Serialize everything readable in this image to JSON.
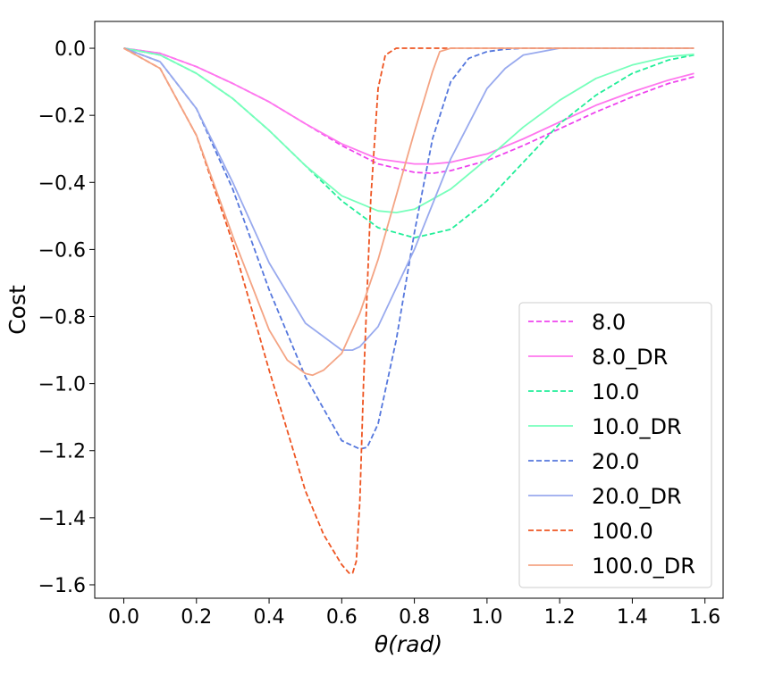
{
  "chart_data": {
    "type": "line",
    "title": "",
    "xlabel": "θ(rad)",
    "ylabel": "Cost",
    "xlim": [
      -0.08,
      1.65
    ],
    "ylim": [
      -1.64,
      0.08
    ],
    "xticks": [
      {
        "value": 0.0,
        "label": "0.0"
      },
      {
        "value": 0.2,
        "label": "0.2"
      },
      {
        "value": 0.4,
        "label": "0.4"
      },
      {
        "value": 0.6,
        "label": "0.6"
      },
      {
        "value": 0.8,
        "label": "0.8"
      },
      {
        "value": 1.0,
        "label": "1.0"
      },
      {
        "value": 1.2,
        "label": "1.2"
      },
      {
        "value": 1.4,
        "label": "1.4"
      },
      {
        "value": 1.6,
        "label": "1.6"
      }
    ],
    "yticks": [
      {
        "value": 0.0,
        "label": "0.0"
      },
      {
        "value": -0.2,
        "label": "−0.2"
      },
      {
        "value": -0.4,
        "label": "−0.4"
      },
      {
        "value": -0.6,
        "label": "−0.6"
      },
      {
        "value": -0.8,
        "label": "−0.8"
      },
      {
        "value": -1.0,
        "label": "−1.0"
      },
      {
        "value": -1.2,
        "label": "−1.2"
      },
      {
        "value": -1.4,
        "label": "−1.4"
      },
      {
        "value": -1.6,
        "label": "−1.6"
      }
    ],
    "grid": false,
    "legend_position": "bottom-right",
    "series": [
      {
        "name": "8.0",
        "style": "dashed",
        "color": "#ee44ee",
        "x": [
          0.0,
          0.1,
          0.2,
          0.3,
          0.4,
          0.5,
          0.6,
          0.7,
          0.8,
          0.85,
          0.9,
          1.0,
          1.1,
          1.2,
          1.3,
          1.4,
          1.5,
          1.57
        ],
        "y": [
          0.0,
          -0.015,
          -0.055,
          -0.105,
          -0.16,
          -0.225,
          -0.29,
          -0.345,
          -0.37,
          -0.373,
          -0.365,
          -0.335,
          -0.29,
          -0.24,
          -0.19,
          -0.145,
          -0.105,
          -0.085
        ]
      },
      {
        "name": "8.0_DR",
        "style": "solid",
        "color": "#ff77ee",
        "x": [
          0.0,
          0.1,
          0.2,
          0.3,
          0.4,
          0.5,
          0.6,
          0.7,
          0.8,
          0.85,
          0.9,
          1.0,
          1.1,
          1.2,
          1.3,
          1.4,
          1.5,
          1.57
        ],
        "y": [
          0.0,
          -0.015,
          -0.055,
          -0.105,
          -0.16,
          -0.225,
          -0.285,
          -0.33,
          -0.345,
          -0.345,
          -0.34,
          -0.315,
          -0.27,
          -0.22,
          -0.17,
          -0.13,
          -0.095,
          -0.075
        ]
      },
      {
        "name": "10.0",
        "style": "dashed",
        "color": "#22ee99",
        "x": [
          0.0,
          0.1,
          0.2,
          0.3,
          0.4,
          0.5,
          0.6,
          0.7,
          0.8,
          0.9,
          1.0,
          1.1,
          1.2,
          1.3,
          1.4,
          1.5,
          1.57
        ],
        "y": [
          0.0,
          -0.02,
          -0.075,
          -0.15,
          -0.245,
          -0.35,
          -0.455,
          -0.535,
          -0.565,
          -0.54,
          -0.455,
          -0.34,
          -0.225,
          -0.14,
          -0.075,
          -0.035,
          -0.02
        ]
      },
      {
        "name": "10.0_DR",
        "style": "solid",
        "color": "#77ffbb",
        "x": [
          0.0,
          0.1,
          0.2,
          0.3,
          0.4,
          0.5,
          0.6,
          0.7,
          0.75,
          0.8,
          0.9,
          1.0,
          1.1,
          1.2,
          1.3,
          1.4,
          1.5,
          1.57
        ],
        "y": [
          0.0,
          -0.02,
          -0.075,
          -0.15,
          -0.245,
          -0.35,
          -0.44,
          -0.485,
          -0.49,
          -0.48,
          -0.42,
          -0.33,
          -0.235,
          -0.155,
          -0.09,
          -0.05,
          -0.025,
          -0.018
        ]
      },
      {
        "name": "20.0",
        "style": "dashed",
        "color": "#5577dd",
        "x": [
          0.0,
          0.1,
          0.2,
          0.3,
          0.4,
          0.5,
          0.6,
          0.65,
          0.67,
          0.7,
          0.75,
          0.8,
          0.85,
          0.9,
          0.95,
          1.0,
          1.05,
          1.1,
          1.2,
          1.3,
          1.57
        ],
        "y": [
          0.0,
          -0.04,
          -0.18,
          -0.42,
          -0.72,
          -0.98,
          -1.17,
          -1.195,
          -1.19,
          -1.12,
          -0.87,
          -0.55,
          -0.27,
          -0.1,
          -0.03,
          -0.01,
          -0.003,
          0.0,
          0.0,
          0.0,
          0.0
        ]
      },
      {
        "name": "20.0_DR",
        "style": "solid",
        "color": "#99aaee",
        "x": [
          0.0,
          0.1,
          0.2,
          0.3,
          0.4,
          0.5,
          0.6,
          0.63,
          0.65,
          0.7,
          0.8,
          0.9,
          1.0,
          1.05,
          1.1,
          1.2,
          1.3,
          1.57
        ],
        "y": [
          0.0,
          -0.04,
          -0.18,
          -0.4,
          -0.64,
          -0.82,
          -0.9,
          -0.9,
          -0.89,
          -0.83,
          -0.6,
          -0.33,
          -0.12,
          -0.06,
          -0.02,
          0.0,
          0.0,
          0.0
        ]
      },
      {
        "name": "100.0",
        "style": "dashed",
        "color": "#ee5522",
        "x": [
          0.0,
          0.1,
          0.2,
          0.3,
          0.4,
          0.5,
          0.55,
          0.6,
          0.62,
          0.63,
          0.64,
          0.65,
          0.66,
          0.68,
          0.7,
          0.72,
          0.75,
          0.8,
          1.0,
          1.57
        ],
        "y": [
          0.0,
          -0.06,
          -0.26,
          -0.58,
          -0.96,
          -1.32,
          -1.45,
          -1.54,
          -1.565,
          -1.565,
          -1.53,
          -1.35,
          -1.0,
          -0.45,
          -0.12,
          -0.02,
          0.0,
          0.0,
          0.0,
          0.0
        ]
      },
      {
        "name": "100.0_DR",
        "style": "solid",
        "color": "#f4a484",
        "x": [
          0.0,
          0.1,
          0.2,
          0.3,
          0.4,
          0.45,
          0.5,
          0.52,
          0.55,
          0.6,
          0.65,
          0.7,
          0.75,
          0.8,
          0.85,
          0.87,
          0.9,
          1.0,
          1.57
        ],
        "y": [
          0.0,
          -0.06,
          -0.26,
          -0.56,
          -0.84,
          -0.93,
          -0.97,
          -0.975,
          -0.96,
          -0.91,
          -0.79,
          -0.63,
          -0.44,
          -0.25,
          -0.07,
          -0.01,
          0.0,
          0.0,
          0.0
        ]
      }
    ]
  }
}
